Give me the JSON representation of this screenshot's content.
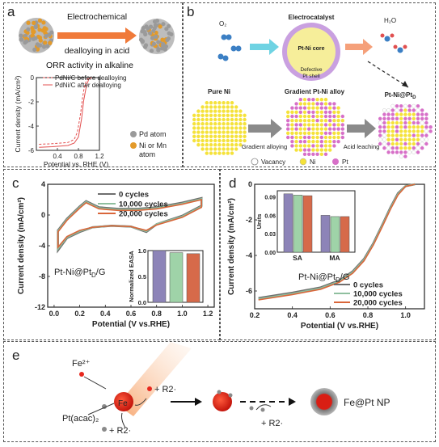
{
  "panel_a": {
    "label": "a",
    "process_line1": "Electrochemical",
    "process_line2": "dealloying in acid",
    "orr_title": "ORR activity in alkaline",
    "legend": [
      "PdNi/C before dealloying",
      "PdNi/C after dealloying"
    ],
    "ylabel": "Current density (mA/cm²)",
    "xlabel": "Potential vs. RHE (V)",
    "xticks": [
      "0.4",
      "0.8",
      "1.2"
    ],
    "yticks": [
      "0",
      "-2",
      "-4",
      "-6"
    ],
    "atoms": [
      "Pd atom",
      "Ni or Mn",
      "atom"
    ]
  },
  "panel_b": {
    "label": "b",
    "o2": "O₂",
    "h2o": "H₂O",
    "electrocatalyst": "Electrocatalyst",
    "core": "Pt-Ni core",
    "shell1": "Defective",
    "shell2": "Pt shell",
    "pure": "Pure Ni",
    "gradient": "Gradient Pt-Ni alloy",
    "final": "Pt-Ni@Pt",
    "final_sub": "D",
    "arrow1": "Gradient alloying",
    "arrow2": "Acid leaching",
    "legend": [
      "Vacancy",
      "Ni",
      "Pt"
    ]
  },
  "panel_c": {
    "label": "c",
    "legend": [
      "0 cycles",
      "10,000 cycles",
      "20,000 cycles"
    ],
    "catalyst": "Pt-Ni@Pt",
    "catalyst_sub": "D",
    "catalyst_tail": "/G",
    "ylabel": "Current density (mA/cm²)",
    "xlabel": "Potential (V vs.RHE)",
    "xticks": [
      "0.0",
      "0.2",
      "0.4",
      "0.6",
      "0.8",
      "1.0",
      "1.2"
    ],
    "yticks": [
      "4",
      "0",
      "-4",
      "-8",
      "-12"
    ],
    "inset_ylabel": "Normalized EASA",
    "inset_yticks": [
      "1.0",
      "0.5",
      "0.0"
    ]
  },
  "panel_d": {
    "label": "d",
    "legend": [
      "0 cycles",
      "10,000 cycles",
      "20,000 cycles"
    ],
    "catalyst": "Pt-Ni@Pt",
    "catalyst_sub": "D",
    "catalyst_tail": "/G",
    "ylabel": "Current density (mA/cm²)",
    "xlabel": "Potential (V vs.RHE)",
    "xticks": [
      "0.2",
      "0.4",
      "0.6",
      "0.8",
      "1.0"
    ],
    "yticks": [
      "0",
      "-2",
      "-4",
      "-6"
    ],
    "inset_ylabel": "Units",
    "inset_yticks": [
      "0.09",
      "0.06",
      "0.03",
      "0.00"
    ],
    "inset_categories": [
      "SA",
      "MA"
    ]
  },
  "panel_e": {
    "label": "e",
    "fe2": "Fe²⁺",
    "r2_top": "+ R2·",
    "fe": "Fe",
    "ptacac": "Pt(acac)₂",
    "r2_bottom": "+ R2·",
    "r2_mid": "+ R2·",
    "product": "Fe@Pt NP"
  },
  "colors": {
    "gray_series": "#6e6e6e",
    "green_series": "#8fbf9f",
    "orange_series": "#d9663a",
    "orange_arrow": "#f07a3a",
    "pt": "#d770c8",
    "ni": "#f5e23a",
    "pd": "#9a9a9a",
    "fe_red": "#e8281e"
  },
  "chart_data": [
    {
      "type": "line",
      "panel": "a",
      "xlabel": "Potential vs. RHE (V)",
      "ylabel": "Current density (mA/cm²)",
      "xlim": [
        0.0,
        1.2
      ],
      "ylim": [
        -6,
        0
      ],
      "series": [
        {
          "name": "PdNi/C before dealloying",
          "x": [
            0.05,
            0.3,
            0.6,
            0.72,
            0.78,
            0.84,
            0.88,
            0.92,
            0.97,
            1.05
          ],
          "y": [
            -5.5,
            -5.45,
            -5.35,
            -5.1,
            -4.5,
            -3.0,
            -1.6,
            -0.6,
            -0.1,
            0.0
          ]
        },
        {
          "name": "PdNi/C after dealloying",
          "x": [
            0.05,
            0.3,
            0.6,
            0.72,
            0.8,
            0.86,
            0.9,
            0.95,
            1.0,
            1.05
          ],
          "y": [
            -5.75,
            -5.7,
            -5.6,
            -5.4,
            -4.9,
            -3.4,
            -1.9,
            -0.7,
            -0.1,
            0.0
          ]
        }
      ]
    },
    {
      "type": "line",
      "panel": "c",
      "xlabel": "Potential (V vs.RHE)",
      "ylabel": "Current density (mA/cm²)",
      "xlim": [
        -0.05,
        1.25
      ],
      "ylim": [
        -12,
        4
      ],
      "series": [
        {
          "name": "0 cycles",
          "x": [
            0.03,
            0.1,
            0.2,
            0.25,
            0.35,
            0.5,
            0.65,
            0.8,
            1.0,
            1.15,
            1.15,
            1.0,
            0.8,
            0.72,
            0.6,
            0.45,
            0.3,
            0.2,
            0.1,
            0.03
          ],
          "y": [
            -2.0,
            -0.5,
            1.1,
            1.8,
            1.0,
            0.8,
            0.8,
            1.0,
            1.6,
            2.2,
            1.2,
            -0.1,
            -1.2,
            -2.2,
            -1.5,
            -1.4,
            -1.6,
            -2.2,
            -3.0,
            -4.6
          ]
        },
        {
          "name": "10,000 cycles",
          "x": [
            0.03,
            0.1,
            0.2,
            0.25,
            0.35,
            0.5,
            0.65,
            0.8,
            1.0,
            1.15,
            1.15,
            1.0,
            0.8,
            0.72,
            0.6,
            0.45,
            0.3,
            0.2,
            0.1,
            0.03
          ],
          "y": [
            -2.1,
            -0.6,
            1.0,
            1.7,
            0.9,
            0.7,
            0.7,
            0.9,
            1.5,
            2.1,
            1.1,
            -0.2,
            -1.2,
            -2.1,
            -1.5,
            -1.4,
            -1.6,
            -2.1,
            -2.9,
            -4.4
          ]
        },
        {
          "name": "20,000 cycles",
          "x": [
            0.03,
            0.1,
            0.2,
            0.25,
            0.35,
            0.5,
            0.65,
            0.8,
            1.0,
            1.15,
            1.15,
            1.0,
            0.8,
            0.72,
            0.6,
            0.45,
            0.3,
            0.2,
            0.1,
            0.03
          ],
          "y": [
            -2.2,
            -0.7,
            0.9,
            1.6,
            0.8,
            0.6,
            0.6,
            0.8,
            1.4,
            2.0,
            1.0,
            -0.3,
            -1.3,
            -2.0,
            -1.5,
            -1.4,
            -1.6,
            -2.0,
            -2.8,
            -4.2
          ]
        }
      ]
    },
    {
      "type": "bar",
      "panel": "c-inset",
      "ylabel": "Normalized EASA",
      "ylim": [
        0,
        1.0
      ],
      "series": [
        {
          "name": "0 cycles",
          "values": [
            1.0
          ]
        },
        {
          "name": "10,000 cycles",
          "values": [
            0.96
          ]
        },
        {
          "name": "20,000 cycles",
          "values": [
            0.94
          ]
        }
      ]
    },
    {
      "type": "line",
      "panel": "d",
      "xlabel": "Potential (V vs.RHE)",
      "ylabel": "Current density (mA/cm²)",
      "xlim": [
        0.2,
        1.1
      ],
      "ylim": [
        -7,
        0
      ],
      "series": [
        {
          "name": "0 cycles",
          "x": [
            0.22,
            0.4,
            0.55,
            0.65,
            0.72,
            0.78,
            0.83,
            0.88,
            0.92,
            0.96,
            1.0,
            1.05
          ],
          "y": [
            -6.4,
            -6.1,
            -5.8,
            -5.4,
            -4.9,
            -4.2,
            -3.3,
            -2.2,
            -1.3,
            -0.5,
            -0.1,
            0.0
          ]
        },
        {
          "name": "10,000 cycles",
          "x": [
            0.22,
            0.4,
            0.55,
            0.65,
            0.72,
            0.78,
            0.83,
            0.88,
            0.92,
            0.96,
            1.0,
            1.05
          ],
          "y": [
            -6.45,
            -6.15,
            -5.85,
            -5.45,
            -4.95,
            -4.25,
            -3.35,
            -2.25,
            -1.35,
            -0.55,
            -0.1,
            0.0
          ]
        },
        {
          "name": "20,000 cycles",
          "x": [
            0.22,
            0.4,
            0.55,
            0.65,
            0.72,
            0.78,
            0.83,
            0.88,
            0.92,
            0.96,
            1.0,
            1.05
          ],
          "y": [
            -6.5,
            -6.2,
            -5.9,
            -5.5,
            -5.0,
            -4.3,
            -3.4,
            -2.3,
            -1.4,
            -0.6,
            -0.12,
            0.0
          ]
        }
      ]
    },
    {
      "type": "bar",
      "panel": "d-inset",
      "ylabel": "Units",
      "categories": [
        "SA",
        "MA"
      ],
      "ylim": [
        0,
        0.1
      ],
      "series": [
        {
          "name": "0 cycles",
          "values": [
            0.095,
            0.06
          ]
        },
        {
          "name": "10,000 cycles",
          "values": [
            0.093,
            0.058
          ]
        },
        {
          "name": "20,000 cycles",
          "values": [
            0.092,
            0.058
          ]
        }
      ]
    }
  ]
}
